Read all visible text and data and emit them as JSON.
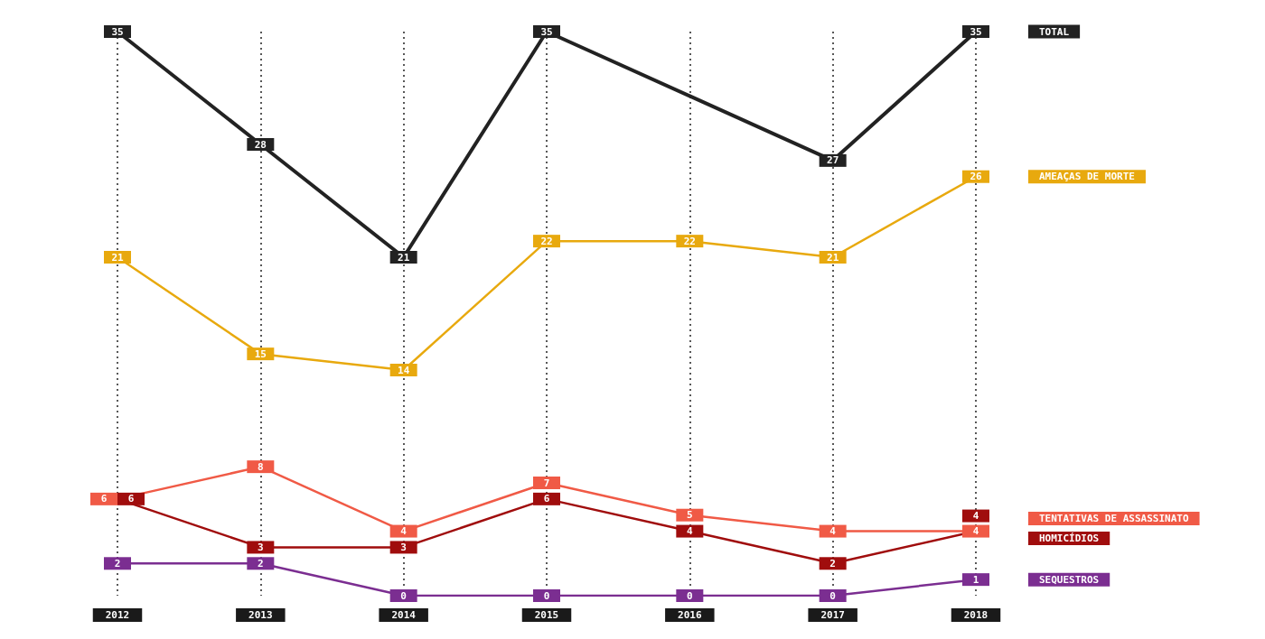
{
  "chart_data": {
    "type": "line",
    "categories": [
      "2012",
      "2013",
      "2014",
      "2015",
      "2016",
      "2017",
      "2018"
    ],
    "ylim": [
      0,
      35
    ],
    "grid": "x",
    "tick_labels": "x",
    "marker": "square",
    "line_style": "solid",
    "series": [
      {
        "name": "TOTAL",
        "color": "#222222",
        "values": [
          35,
          28,
          21,
          35,
          31,
          27,
          35
        ],
        "value_labels": [
          "35",
          "28",
          "21",
          "35",
          null,
          "27",
          "35"
        ]
      },
      {
        "name": "AMEAÇAS DE MORTE",
        "color": "#e8a90e",
        "values": [
          21,
          15,
          14,
          22,
          22,
          21,
          26
        ],
        "value_labels": [
          "21",
          "15",
          "14",
          "22",
          "22",
          "21",
          "26"
        ]
      },
      {
        "name": "TENTATIVAS DE ASSASSINATO",
        "color": "#f05a46",
        "values": [
          6,
          8,
          4,
          7,
          5,
          4,
          4
        ],
        "value_labels": [
          "6",
          "8",
          "4",
          "7",
          "5",
          "4",
          "4"
        ]
      },
      {
        "name": "HOMICÍDIOS",
        "color": "#a00d0d",
        "values": [
          6,
          3,
          3,
          6,
          4,
          2,
          4
        ],
        "value_labels": [
          "6",
          "3",
          "3",
          "6",
          "4",
          "2",
          "4"
        ]
      },
      {
        "name": "SEQUESTROS",
        "color": "#7b2e91",
        "values": [
          2,
          2,
          0,
          0,
          0,
          0,
          1
        ],
        "value_labels": [
          "2",
          "2",
          "0",
          "0",
          "0",
          "0",
          "1"
        ]
      }
    ]
  }
}
